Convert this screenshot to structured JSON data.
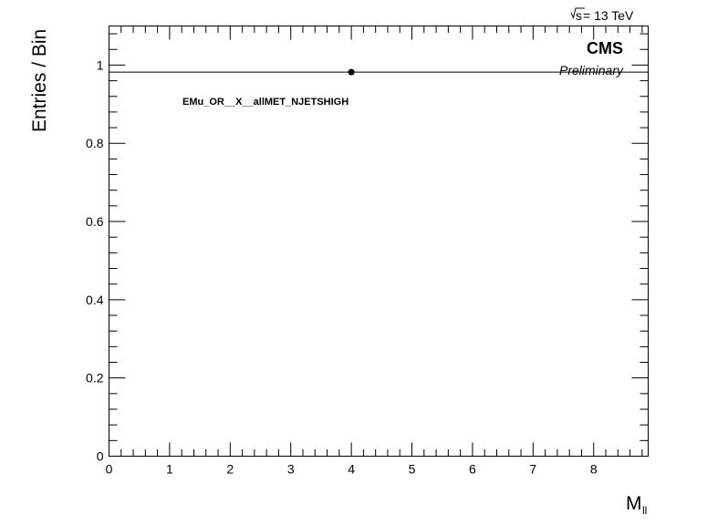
{
  "chart_data": {
    "type": "line",
    "title": "",
    "xlabel": "M",
    "xlabel_subscript": "ll",
    "ylabel": "Entries / Bin",
    "xlim": [
      0,
      8.9
    ],
    "ylim": [
      0,
      1.1
    ],
    "x_ticks": [
      "0",
      "1",
      "2",
      "3",
      "4",
      "5",
      "6",
      "7",
      "8"
    ],
    "y_ticks": [
      "0",
      "0.2",
      "0.4",
      "0.6",
      "0.8",
      "1"
    ],
    "x_tick_values": [
      0,
      1,
      2,
      3,
      4,
      5,
      6,
      7,
      8
    ],
    "y_tick_values": [
      0,
      0.2,
      0.4,
      0.6,
      0.8,
      1.0
    ],
    "series": [
      {
        "x": [
          0,
          8.9
        ],
        "values": [
          0.982,
          0.982
        ],
        "style": "line",
        "color": "#000000"
      },
      {
        "x": [
          4
        ],
        "values": [
          0.982
        ],
        "style": "marker",
        "color": "#000000"
      }
    ],
    "grid": false,
    "legend": "none"
  },
  "labels": {
    "energy_sqrt": "s",
    "energy_value": " = 13 TeV",
    "experiment": "CMS",
    "status": "Preliminary",
    "category": "EMu_OR__X__allMET_NJETSHIGH"
  }
}
